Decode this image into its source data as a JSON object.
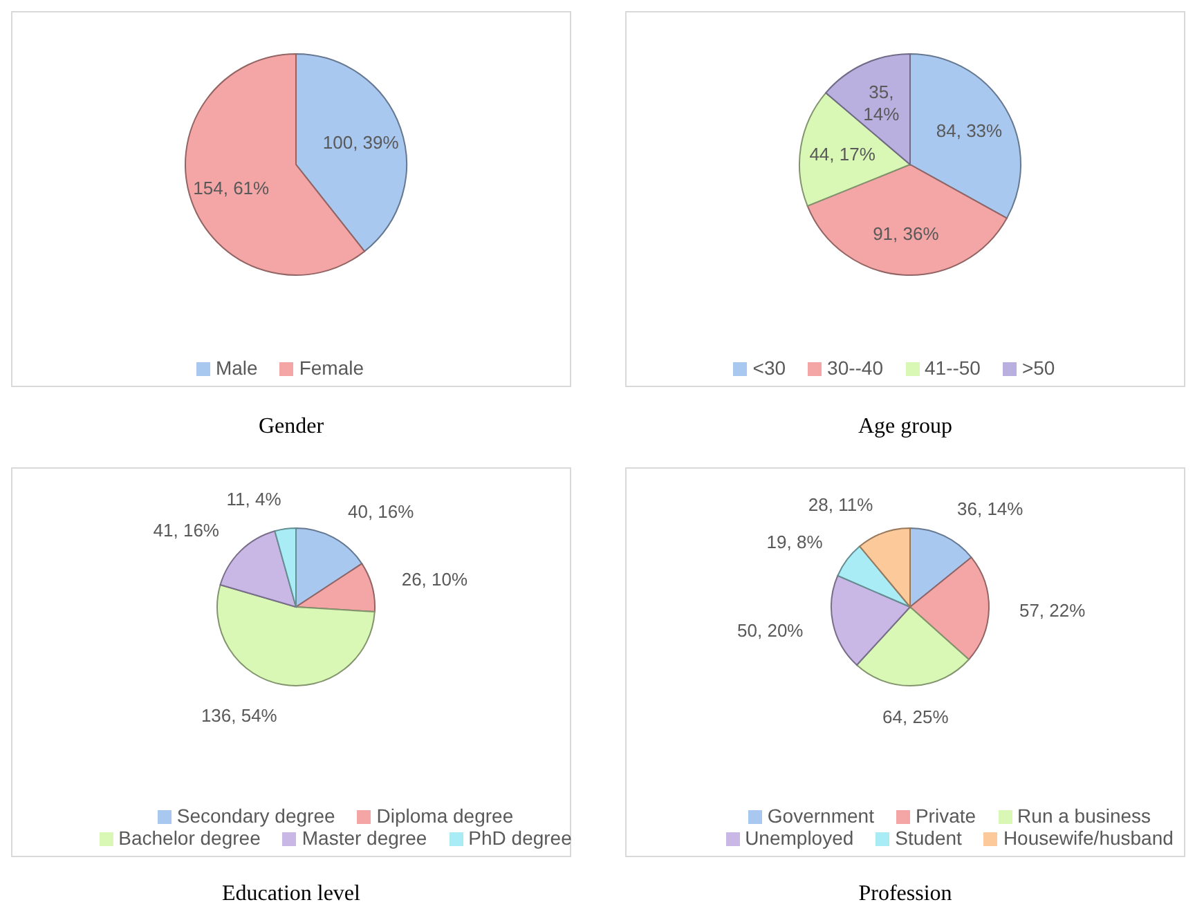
{
  "chart_data": [
    {
      "type": "pie",
      "title": "Gender",
      "categories": [
        "Male",
        "Female"
      ],
      "values": [
        100,
        154
      ],
      "value_labels": [
        "100, 39%",
        "154, 61%"
      ],
      "colors": [
        "#a9c8f0",
        "#f4a6a6"
      ],
      "legend": "bottom"
    },
    {
      "type": "pie",
      "title": "Age group",
      "categories": [
        "<30",
        "30--40",
        "41--50",
        ">50"
      ],
      "values": [
        84,
        91,
        44,
        35
      ],
      "value_labels": [
        "84, 33%",
        "91, 36%",
        "44, 17%",
        "35, 14%"
      ],
      "colors": [
        "#a9c8f0",
        "#f4a6a6",
        "#d9f7b5",
        "#b9b0e0"
      ],
      "legend": "bottom"
    },
    {
      "type": "pie",
      "title": "Education level",
      "categories": [
        "Secondary degree",
        "Diploma degree",
        "Bachelor degree",
        "Master degree",
        "PhD degree"
      ],
      "values": [
        40,
        26,
        136,
        41,
        11
      ],
      "value_labels": [
        "40, 16%",
        "26, 10%",
        "136, 54%",
        "41, 16%",
        "11, 4%"
      ],
      "colors": [
        "#a9c8f0",
        "#f4a6a6",
        "#d9f7b5",
        "#c9b8e6",
        "#a9ecf5"
      ],
      "legend": "bottom"
    },
    {
      "type": "pie",
      "title": "Profession",
      "categories": [
        "Government",
        "Private",
        "Run a business",
        "Unemployed",
        "Student",
        "Housewife/husband"
      ],
      "values": [
        36,
        57,
        64,
        50,
        19,
        28
      ],
      "value_labels": [
        "36, 14%",
        "57, 22%",
        "64, 25%",
        "50, 20%",
        "19, 8%",
        "28, 11%"
      ],
      "colors": [
        "#a9c8f0",
        "#f4a6a6",
        "#d9f7b5",
        "#c9b8e6",
        "#a9ecf5",
        "#fcc99a"
      ],
      "legend": "bottom"
    }
  ]
}
